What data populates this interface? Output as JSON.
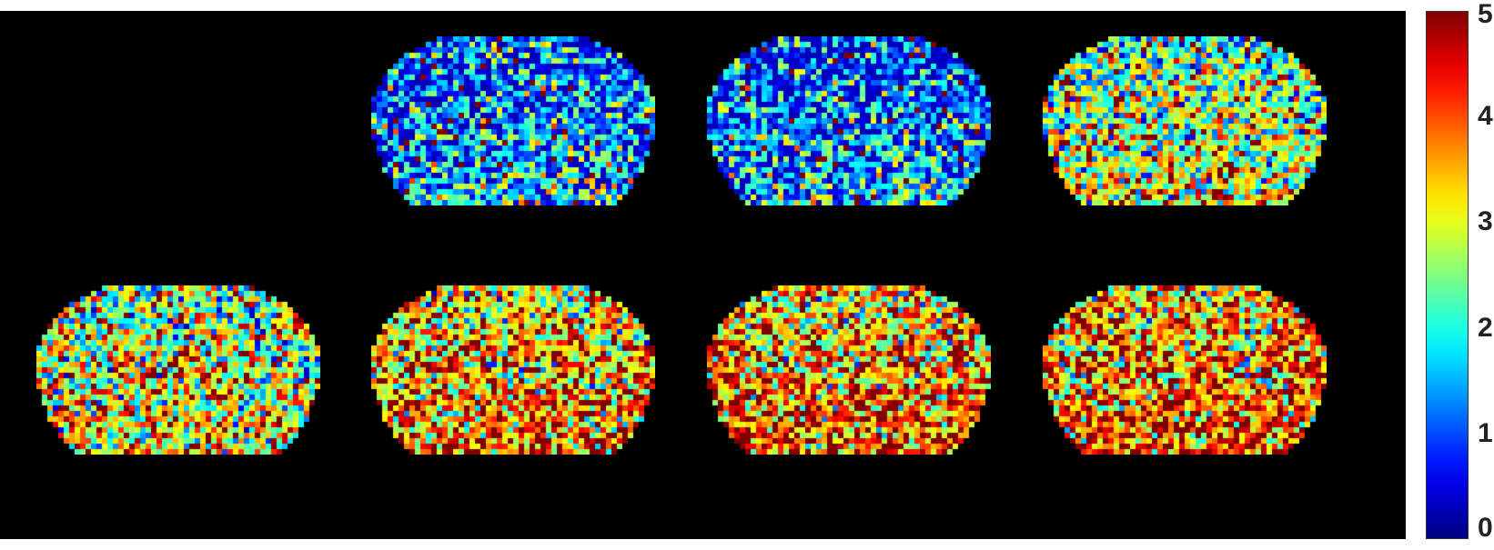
{
  "chart_data": {
    "type": "heatmap",
    "title": "",
    "colormap": "jet",
    "clim": [
      0,
      5
    ],
    "background": "#000000",
    "grid_layout": {
      "rows": 2,
      "cols": 4
    },
    "panels": [
      {
        "id": 1,
        "row": 1,
        "col": 1,
        "empty": true
      },
      {
        "id": 2,
        "row": 1,
        "col": 2,
        "mean_level": 1.3,
        "empty": false
      },
      {
        "id": 3,
        "row": 1,
        "col": 3,
        "mean_level": 1.2,
        "empty": false
      },
      {
        "id": 4,
        "row": 1,
        "col": 4,
        "mean_level": 2.6,
        "empty": false
      },
      {
        "id": 5,
        "row": 2,
        "col": 1,
        "mean_level": 2.8,
        "empty": false
      },
      {
        "id": 6,
        "row": 2,
        "col": 2,
        "mean_level": 3.4,
        "empty": false
      },
      {
        "id": 7,
        "row": 2,
        "col": 3,
        "mean_level": 3.5,
        "empty": false
      },
      {
        "id": 8,
        "row": 2,
        "col": 4,
        "mean_level": 3.6,
        "empty": false
      }
    ],
    "colorbar": {
      "ticks": [
        0,
        1,
        2,
        3,
        4,
        5
      ],
      "tick_labels": [
        "0",
        "1",
        "2",
        "3",
        "4",
        "5"
      ]
    }
  }
}
